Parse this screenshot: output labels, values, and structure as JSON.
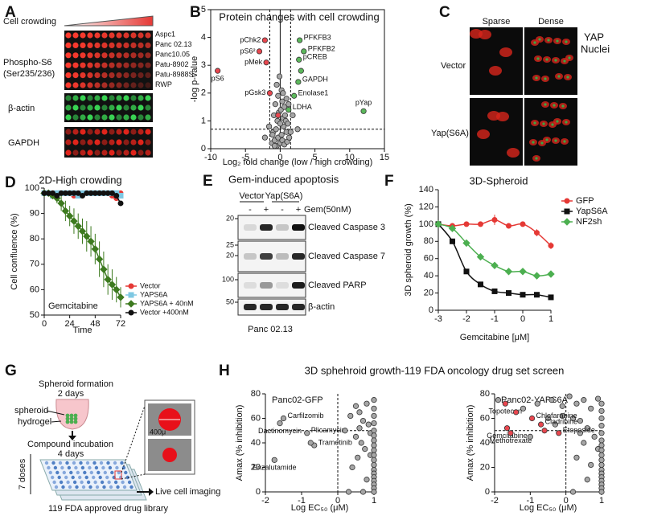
{
  "panel_labels": [
    "A",
    "B",
    "C",
    "D",
    "E",
    "F",
    "G",
    "H"
  ],
  "panel_a": {
    "crowding_label": "Cell crowding",
    "phospho_label": "Phospho-S6",
    "phospho_site": "(Ser235/236)",
    "actin_label": "β-actin",
    "gapdh_label": "GAPDH",
    "cell_lines": [
      "Aspc1",
      "Panc 02.13",
      "Panc10.05",
      "Patu-8902",
      "Patu-8988S",
      "RWP"
    ]
  },
  "panel_c": {
    "columns": [
      "Sparse",
      "Dense"
    ],
    "rows": [
      "Vector",
      "Yap(S6A)"
    ],
    "stain_yap": "YAP",
    "stain_nuclei": "Nuclei"
  },
  "panel_e": {
    "title": "Gem-induced apoptosis",
    "groups": [
      "Vector",
      "Yap(S6A)"
    ],
    "treatment": "Gem(50nM)",
    "lanes": [
      "-",
      "+",
      "-",
      "+"
    ],
    "bands": [
      "Cleaved Caspase 3",
      "Cleaved Caspase 7",
      "Cleaved PARP",
      "β-actin"
    ],
    "markers": [
      20,
      25,
      20,
      100,
      50
    ],
    "cell_line": "Panc 02.13"
  },
  "panel_g": {
    "step1": "Spheroid formation",
    "step1_time": "2 days",
    "spheroid": "spheroid",
    "hydrogel": "hydrogel",
    "step2": "Compound incubation",
    "step2_time": "4 days",
    "doses": "7 doses",
    "library": "119 FDA approved drug library",
    "step3": "Live cell imaging",
    "scale": "400μ"
  },
  "panel_h": {
    "title": "3D sphehroid growth-119 FDA oncology drug set screen"
  },
  "chart_data": [
    {
      "type": "scatter",
      "title": "Protein changes with cell crowding",
      "xlabel": "Log₂ fold change (low / high crowding)",
      "ylabel": "-log p-value",
      "xlim": [
        -10,
        15
      ],
      "xticks": [
        -10,
        -5,
        0,
        5,
        10,
        15
      ],
      "ylim": [
        0,
        5
      ],
      "yticks": [
        0,
        1,
        2,
        3,
        4,
        5
      ],
      "frame": true,
      "ref_lines": [
        {
          "axis": "x",
          "value": 0,
          "style": "solid"
        },
        {
          "axis": "x",
          "value": -1.5,
          "style": "dashed"
        },
        {
          "axis": "x",
          "value": 1.5,
          "style": "dashed"
        },
        {
          "axis": "y",
          "value": 0.7,
          "style": "dashed"
        }
      ],
      "series": [
        {
          "color": "#a6a6a6",
          "x": [
            -1.2,
            -0.8,
            -0.5,
            -0.3,
            0,
            0.3,
            0.6,
            1.0,
            -1.0,
            -0.6,
            0.2,
            0.5,
            0.9,
            1.3,
            -0.4,
            0,
            0.4,
            0.8,
            -0.9,
            -0.2,
            0.1,
            0.7,
            1.1,
            -1.6,
            -0.7,
            0.3,
            0.6,
            1.5,
            -0.3,
            0.2,
            -1.1,
            1.8,
            -2.2,
            -0.5,
            0.9,
            2.5,
            -0.1,
            0.4,
            1.2,
            -0.8
          ],
          "values": [
            0.2,
            0.3,
            0.1,
            0.4,
            0.2,
            0.3,
            0.15,
            0.25,
            0.6,
            0.7,
            0.5,
            0.8,
            0.6,
            0.4,
            1.0,
            0.9,
            1.1,
            1.0,
            1.2,
            1.3,
            1.4,
            1.2,
            0.9,
            0.8,
            1.6,
            1.7,
            1.5,
            0.6,
            1.9,
            2.1,
            0.5,
            1.2,
            0.4,
            2.3,
            1.8,
            0.7,
            2.6,
            2.0,
            1.6,
            0.1
          ]
        },
        {
          "color": "#e8474f",
          "x": [
            -9,
            -2.2,
            -3,
            -2,
            -1.5,
            -0.3
          ],
          "values": [
            2.8,
            3.9,
            3.5,
            3.1,
            2.0,
            1.2
          ],
          "labels": [
            "pS6",
            "pChk2",
            "pS6²",
            "pMek",
            "pGsk3",
            null
          ]
        },
        {
          "color": "#5cb85c",
          "x": [
            2.8,
            3.4,
            2.7,
            3.0,
            2.6,
            2.0,
            1.2,
            12
          ],
          "values": [
            3.9,
            3.5,
            3.2,
            2.8,
            2.4,
            1.9,
            1.4,
            1.35
          ],
          "labels": [
            "PFKFB3",
            "PFKFB2",
            "pCREB",
            null,
            "GAPDH",
            "Enolase1",
            "LDHA",
            "pYap"
          ]
        }
      ]
    },
    {
      "type": "line",
      "title": "2D-High crowding",
      "xlabel": "Time",
      "ylabel": "Cell confluence (%)",
      "annotation": "Gemcitabine",
      "legend": "right",
      "xlim": [
        0,
        72
      ],
      "xticks": [
        0,
        24,
        48,
        72
      ],
      "ylim": [
        50,
        100
      ],
      "yticks": [
        50,
        60,
        70,
        80,
        90,
        100
      ],
      "x": [
        0,
        4,
        8,
        12,
        16,
        20,
        24,
        28,
        32,
        36,
        40,
        44,
        48,
        52,
        56,
        60,
        64,
        68,
        72
      ],
      "series": [
        {
          "name": "Vector",
          "color": "#e53935",
          "marker": "circle",
          "values": [
            98,
            98,
            98,
            98,
            98,
            98,
            98,
            97,
            98,
            98,
            98,
            98,
            98,
            98,
            98,
            98,
            97,
            96,
            98
          ]
        },
        {
          "name": "YAPS6A",
          "color": "#7ec8e3",
          "marker": "square",
          "values": [
            98,
            98,
            97,
            98,
            98,
            98,
            98,
            98,
            97,
            98,
            98,
            98,
            98,
            98,
            98,
            98,
            98,
            98,
            97
          ]
        },
        {
          "name": "YAPS6A + 40nM",
          "color": "#3d7a1f",
          "marker": "diamond",
          "values": [
            98,
            98,
            97,
            96,
            94,
            91,
            89,
            87,
            85,
            83,
            81,
            79,
            76,
            72,
            68,
            64,
            62,
            60,
            57
          ],
          "errors": [
            1,
            1,
            1,
            2,
            3,
            4,
            4,
            5,
            5,
            5,
            6,
            6,
            6,
            7,
            7,
            6,
            6,
            5,
            4
          ]
        },
        {
          "name": "Vector +400nM",
          "color": "#111111",
          "marker": "circle",
          "values": [
            98,
            98,
            98,
            97,
            98,
            98,
            98,
            98,
            98,
            97,
            98,
            98,
            98,
            98,
            98,
            98,
            98,
            97,
            94
          ]
        }
      ]
    },
    {
      "type": "line",
      "title": "3D-Spheroid",
      "xlabel": "Gemcitabine [μM]",
      "ylabel": "3D spheroid growth (%)",
      "legend": "right",
      "smooth": true,
      "xlim": [
        -3,
        1
      ],
      "xticks": [
        -3,
        -2,
        -1,
        0,
        1
      ],
      "ylim": [
        0,
        140
      ],
      "yticks": [
        0,
        20,
        40,
        60,
        80,
        100,
        120,
        140
      ],
      "x": [
        -3,
        -2.5,
        -2,
        -1.5,
        -1,
        -0.5,
        0,
        0.5,
        1
      ],
      "series": [
        {
          "name": "GFP",
          "color": "#e53935",
          "marker": "circle",
          "values": [
            100,
            98,
            100,
            100,
            105,
            98,
            100,
            90,
            75
          ],
          "errors": [
            0,
            3,
            2,
            0,
            6,
            3,
            0,
            4,
            4
          ]
        },
        {
          "name": "YapS6A",
          "color": "#111111",
          "marker": "square",
          "values": [
            100,
            80,
            45,
            30,
            22,
            20,
            18,
            18,
            15
          ]
        },
        {
          "name": "NF2sh",
          "color": "#4caf50",
          "marker": "diamond",
          "values": [
            100,
            95,
            78,
            62,
            52,
            45,
            45,
            40,
            42
          ]
        }
      ]
    },
    {
      "type": "scatter",
      "subtitle": "Panc02-GFP",
      "xlabel": "Log EC₅₀ (μM)",
      "ylabel": "Amax (% inhibition)",
      "xlim": [
        -2,
        1
      ],
      "xticks": [
        -2,
        -1,
        0,
        1
      ],
      "ylim": [
        0,
        80
      ],
      "yticks": [
        0,
        20,
        40,
        60,
        80
      ],
      "ref_lines": [
        {
          "axis": "x",
          "value": 0,
          "style": "dashed"
        },
        {
          "axis": "y",
          "value": 50,
          "style": "dashed"
        }
      ],
      "series": [
        {
          "color": "#a6a6a6",
          "x": [
            -1.5,
            -1.6,
            -0.85,
            -0.65,
            -1.75
          ],
          "values": [
            60,
            56,
            48,
            38,
            26
          ],
          "labels": [
            "Carfilzomib",
            "Dactinomycin",
            "Plicamycin",
            "Trametinib",
            "Enzalutamide"
          ]
        },
        {
          "color": "#a6a6a6",
          "x": [
            -0.75,
            0.2,
            0.35,
            0.5,
            0.6,
            0.7,
            0.8,
            0.85,
            0.5,
            0.65,
            0.75,
            0.55,
            0.9,
            0.4,
            0.8,
            0.7,
            0.3,
            0.9,
            0.6,
            1,
            1,
            1,
            1,
            1,
            1,
            1,
            1,
            1,
            1,
            1,
            1,
            1,
            1,
            1,
            1,
            1,
            1,
            1
          ],
          "values": [
            40,
            50,
            62,
            70,
            65,
            58,
            72,
            55,
            45,
            40,
            35,
            28,
            48,
            20,
            10,
            0,
            0,
            30,
            52,
            75,
            68,
            62,
            56,
            50,
            46,
            42,
            38,
            34,
            30,
            26,
            22,
            18,
            15,
            12,
            9,
            6,
            3,
            0
          ]
        }
      ]
    },
    {
      "type": "scatter",
      "subtitle": "Panc02-YAPS6A",
      "xlabel": "Log EC₅₀ (μM)",
      "ylabel": "Amax (% inhibition)",
      "xlim": [
        -2,
        1
      ],
      "xticks": [
        -2,
        -1,
        0,
        1
      ],
      "ylim": [
        0,
        80
      ],
      "yticks": [
        0,
        20,
        40,
        60,
        80
      ],
      "ref_lines": [
        {
          "axis": "x",
          "value": 0,
          "style": "dashed"
        },
        {
          "axis": "y",
          "value": 50,
          "style": "dashed"
        }
      ],
      "series": [
        {
          "color": "#a6a6a6",
          "x": [
            -1.9,
            -1.2,
            -0.8,
            -0.4,
            -0.1,
            0.1,
            0.3,
            0.5,
            0.7,
            0.9,
            -1.0,
            -0.5,
            -0.3,
            0.2,
            0.4,
            0.6,
            0.8,
            0.5,
            0.3,
            0.7,
            0.9,
            0.6,
            0.2,
            -0.1,
            0.4,
            1,
            1,
            1,
            1,
            1,
            1,
            1,
            1,
            1,
            1,
            1,
            1,
            1,
            1,
            1,
            1,
            1,
            1
          ],
          "values": [
            75,
            68,
            72,
            75,
            70,
            78,
            72,
            75,
            68,
            76,
            45,
            60,
            55,
            60,
            58,
            52,
            45,
            40,
            28,
            22,
            35,
            10,
            0,
            62,
            48,
            72,
            66,
            60,
            54,
            48,
            42,
            38,
            34,
            30,
            26,
            22,
            18,
            15,
            12,
            9,
            6,
            3,
            0
          ]
        },
        {
          "color": "#e8474f",
          "x": [
            -1.7,
            -1.65,
            -0.95,
            -0.7,
            -1.55,
            -0.2
          ],
          "values": [
            72,
            52,
            60,
            55,
            48,
            48
          ],
          "labels": [
            "Topotecan",
            "Gemcitabine",
            "Chlofarabine",
            "Cladribine",
            "Methotrexate",
            "Etoposide"
          ]
        },
        {
          "color": "#e8474f",
          "x": [
            -1.4,
            -0.6
          ],
          "values": [
            65,
            50
          ]
        }
      ]
    }
  ]
}
